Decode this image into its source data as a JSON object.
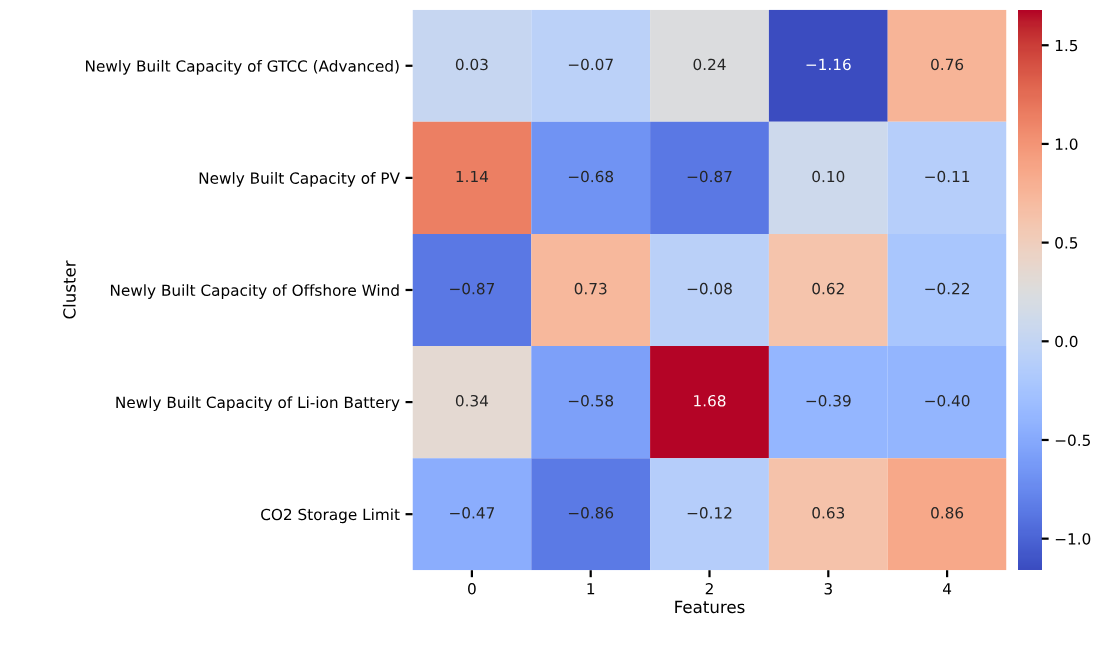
{
  "chart_data": {
    "type": "heatmap",
    "xlabel": "Features",
    "ylabel": "Cluster",
    "categories": [
      "0",
      "1",
      "2",
      "3",
      "4"
    ],
    "y_categories": [
      "Newly Built Capacity of GTCC (Advanced)",
      "Newly Built Capacity of PV",
      "Newly Built Capacity of Offshore Wind",
      "Newly Built Capacity of Li-ion Battery",
      "CO2 Storage Limit"
    ],
    "cells": [
      [
        0.03,
        -0.07,
        0.24,
        -1.16,
        0.76
      ],
      [
        1.14,
        -0.68,
        -0.87,
        0.1,
        -0.11
      ],
      [
        -0.87,
        0.73,
        -0.08,
        0.62,
        -0.22
      ],
      [
        0.34,
        -0.58,
        1.68,
        -0.39,
        -0.4
      ],
      [
        -0.47,
        -0.86,
        -0.12,
        0.63,
        0.86
      ]
    ],
    "cell_labels": [
      [
        "0.03",
        "−0.07",
        "0.24",
        "−1.16",
        "0.76"
      ],
      [
        "1.14",
        "−0.68",
        "−0.87",
        "0.10",
        "−0.11"
      ],
      [
        "−0.87",
        "0.73",
        "−0.08",
        "0.62",
        "−0.22"
      ],
      [
        "0.34",
        "−0.58",
        "1.68",
        "−0.39",
        "−0.40"
      ],
      [
        "−0.47",
        "−0.86",
        "−0.12",
        "0.63",
        "0.86"
      ]
    ],
    "clim": [
      -1.16,
      1.68
    ],
    "cticks": [
      {
        "value": -1.0,
        "label": "−1.0"
      },
      {
        "value": -0.5,
        "label": "−0.5"
      },
      {
        "value": 0.0,
        "label": "0.0"
      },
      {
        "value": 0.5,
        "label": "0.5"
      },
      {
        "value": 1.0,
        "label": "1.0"
      },
      {
        "value": 1.5,
        "label": "1.5"
      }
    ]
  }
}
